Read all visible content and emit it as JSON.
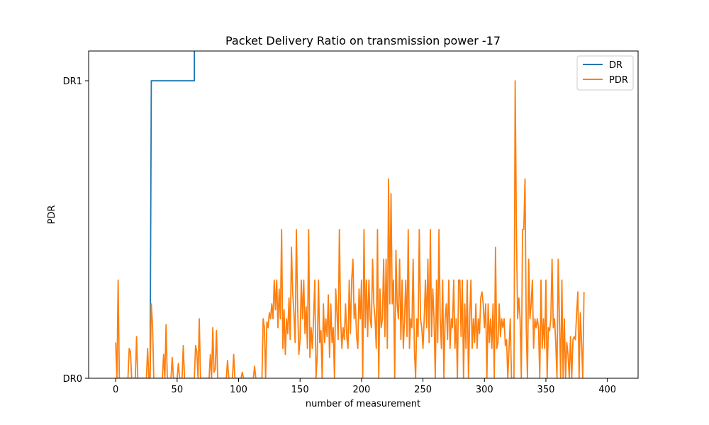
{
  "chart_data": {
    "type": "line",
    "title": "Packet Delivery Ratio on transmission power -17",
    "xlabel": "number of measurement",
    "ylabel": "PDR",
    "xlim": [
      -22,
      425
    ],
    "ylim": [
      0,
      1.1
    ],
    "x_ticks": [
      0,
      50,
      100,
      150,
      200,
      250,
      300,
      350,
      400
    ],
    "y_ticks": [
      {
        "value": 0,
        "label": "DR0"
      },
      {
        "value": 1,
        "label": "DR1"
      }
    ],
    "grid": false,
    "legend": {
      "position": "top-right",
      "entries": [
        "DR",
        "PDR"
      ]
    },
    "series": [
      {
        "name": "DR",
        "color": "#1f77b4",
        "points": [
          [
            0,
            0
          ],
          [
            28,
            0
          ],
          [
            29,
            1
          ],
          [
            64,
            1
          ],
          [
            64,
            1.2
          ]
        ]
      },
      {
        "name": "PDR",
        "color": "#ff7f0e",
        "points": [
          [
            0,
            0.12
          ],
          [
            1,
            0
          ],
          [
            2,
            0.33
          ],
          [
            3,
            0
          ],
          [
            10,
            0
          ],
          [
            11,
            0.1
          ],
          [
            12,
            0.09
          ],
          [
            13,
            0
          ],
          [
            16,
            0
          ],
          [
            17,
            0.14
          ],
          [
            18,
            0
          ],
          [
            25,
            0
          ],
          [
            26,
            0.1
          ],
          [
            27,
            0
          ],
          [
            28,
            0
          ],
          [
            29,
            0.25
          ],
          [
            30,
            0.18
          ],
          [
            31,
            0
          ],
          [
            38,
            0
          ],
          [
            39,
            0.08
          ],
          [
            40,
            0
          ],
          [
            41,
            0.18
          ],
          [
            42,
            0
          ],
          [
            45,
            0
          ],
          [
            46,
            0.07
          ],
          [
            47,
            0
          ],
          [
            50,
            0
          ],
          [
            51,
            0.05
          ],
          [
            52,
            0
          ],
          [
            54,
            0
          ],
          [
            55,
            0.11
          ],
          [
            56,
            0
          ],
          [
            64,
            0
          ],
          [
            65,
            0.11
          ],
          [
            66,
            0.09
          ],
          [
            67,
            0
          ],
          [
            68,
            0.2
          ],
          [
            69,
            0
          ],
          [
            76,
            0
          ],
          [
            77,
            0.08
          ],
          [
            78,
            0
          ],
          [
            79,
            0.17
          ],
          [
            80,
            0.02
          ],
          [
            81,
            0.03
          ],
          [
            82,
            0.16
          ],
          [
            83,
            0
          ],
          [
            90,
            0
          ],
          [
            91,
            0.06
          ],
          [
            92,
            0
          ],
          [
            95,
            0
          ],
          [
            96,
            0.08
          ],
          [
            97,
            0
          ],
          [
            102,
            0
          ],
          [
            103,
            0.02
          ],
          [
            104,
            0
          ],
          [
            112,
            0
          ],
          [
            113,
            0.04
          ],
          [
            114,
            0
          ],
          [
            119,
            0
          ],
          [
            120,
            0.2
          ],
          [
            121,
            0.17
          ],
          [
            122,
            0
          ],
          [
            123,
            0.19
          ],
          [
            124,
            0.17
          ],
          [
            125,
            0.22
          ],
          [
            126,
            0.2
          ],
          [
            127,
            0.25
          ],
          [
            128,
            0.2
          ],
          [
            129,
            0.33
          ],
          [
            130,
            0.23
          ],
          [
            131,
            0.33
          ],
          [
            132,
            0.17
          ],
          [
            133,
            0.3
          ],
          [
            134,
            0.2
          ],
          [
            135,
            0.5
          ],
          [
            136,
            0.1
          ],
          [
            137,
            0.23
          ],
          [
            138,
            0.08
          ],
          [
            139,
            0.2
          ],
          [
            140,
            0.15
          ],
          [
            141,
            0.27
          ],
          [
            142,
            0.13
          ],
          [
            143,
            0.44
          ],
          [
            144,
            0.29
          ],
          [
            145,
            0.22
          ],
          [
            146,
            0.12
          ],
          [
            147,
            0.5
          ],
          [
            148,
            0.25
          ],
          [
            149,
            0.08
          ],
          [
            150,
            0.13
          ],
          [
            151,
            0.33
          ],
          [
            152,
            0.2
          ],
          [
            153,
            0.33
          ],
          [
            154,
            0.15
          ],
          [
            155,
            0.24
          ],
          [
            156,
            0.1
          ],
          [
            157,
            0.5
          ],
          [
            158,
            0.07
          ],
          [
            159,
            0.17
          ],
          [
            160,
            0.1
          ],
          [
            161,
            0.2
          ],
          [
            162,
            0.33
          ],
          [
            163,
            0
          ],
          [
            164,
            0.08
          ],
          [
            165,
            0.33
          ],
          [
            166,
            0.12
          ],
          [
            167,
            0.16
          ],
          [
            168,
            0
          ],
          [
            169,
            0.25
          ],
          [
            170,
            0.12
          ],
          [
            171,
            0.2
          ],
          [
            172,
            0.14
          ],
          [
            173,
            0.28
          ],
          [
            174,
            0.07
          ],
          [
            175,
            0.25
          ],
          [
            176,
            0.12
          ],
          [
            177,
            0.17
          ],
          [
            178,
            0
          ],
          [
            179,
            0.3
          ],
          [
            180,
            0.22
          ],
          [
            181,
            0.13
          ],
          [
            182,
            0.5
          ],
          [
            183,
            0.2
          ],
          [
            184,
            0.1
          ],
          [
            185,
            0.17
          ],
          [
            186,
            0.13
          ],
          [
            187,
            0.25
          ],
          [
            188,
            0.14
          ],
          [
            189,
            0.1
          ],
          [
            190,
            0.33
          ],
          [
            191,
            0.15
          ],
          [
            192,
            0.33
          ],
          [
            193,
            0.4
          ],
          [
            194,
            0.2
          ],
          [
            195,
            0.25
          ],
          [
            196,
            0.14
          ],
          [
            197,
            0.1
          ],
          [
            198,
            0.3
          ],
          [
            199,
            0.2
          ],
          [
            200,
            0.33
          ],
          [
            201,
            0
          ],
          [
            202,
            0.5
          ],
          [
            203,
            0.17
          ],
          [
            204,
            0.33
          ],
          [
            205,
            0.14
          ],
          [
            206,
            0.33
          ],
          [
            207,
            0.2
          ],
          [
            208,
            0.17
          ],
          [
            209,
            0.4
          ],
          [
            210,
            0.25
          ],
          [
            211,
            0.2
          ],
          [
            212,
            0.1
          ],
          [
            213,
            0.5
          ],
          [
            214,
            0
          ],
          [
            215,
            0.3
          ],
          [
            216,
            0.17
          ],
          [
            217,
            0.2
          ],
          [
            218,
            0.4
          ],
          [
            219,
            0.14
          ],
          [
            220,
            0.4
          ],
          [
            221,
            0.1
          ],
          [
            222,
            0.67
          ],
          [
            223,
            0.25
          ],
          [
            224,
            0.62
          ],
          [
            225,
            0.25
          ],
          [
            226,
            0.33
          ],
          [
            227,
            0
          ],
          [
            228,
            0.43
          ],
          [
            229,
            0.25
          ],
          [
            230,
            0.2
          ],
          [
            231,
            0.4
          ],
          [
            232,
            0.13
          ],
          [
            233,
            0.33
          ],
          [
            234,
            0.1
          ],
          [
            235,
            0.2
          ],
          [
            236,
            0.33
          ],
          [
            237,
            0.14
          ],
          [
            238,
            0.5
          ],
          [
            239,
            0.1
          ],
          [
            240,
            0.2
          ],
          [
            241,
            0.17
          ],
          [
            242,
            0.4
          ],
          [
            243,
            0.1
          ],
          [
            244,
            0
          ],
          [
            245,
            0.2
          ],
          [
            246,
            0.14
          ],
          [
            247,
            0.5
          ],
          [
            248,
            0.2
          ],
          [
            249,
            0.17
          ],
          [
            250,
            0.1
          ],
          [
            251,
            0.2
          ],
          [
            252,
            0.33
          ],
          [
            253,
            0.17
          ],
          [
            254,
            0.4
          ],
          [
            255,
            0.12
          ],
          [
            256,
            0.5
          ],
          [
            257,
            0.14
          ],
          [
            258,
            0.3
          ],
          [
            259,
            0.2
          ],
          [
            260,
            0
          ],
          [
            261,
            0.33
          ],
          [
            262,
            0.12
          ],
          [
            263,
            0.5
          ],
          [
            264,
            0.2
          ],
          [
            265,
            0.1
          ],
          [
            266,
            0.33
          ],
          [
            267,
            0
          ],
          [
            268,
            0.2
          ],
          [
            269,
            0.25
          ],
          [
            270,
            0.13
          ],
          [
            271,
            0.33
          ],
          [
            272,
            0.1
          ],
          [
            273,
            0.2
          ],
          [
            274,
            0.17
          ],
          [
            275,
            0.33
          ],
          [
            276,
            0.1
          ],
          [
            277,
            0.2
          ],
          [
            278,
            0
          ],
          [
            279,
            0.33
          ],
          [
            280,
            0.33
          ],
          [
            281,
            0.14
          ],
          [
            282,
            0.33
          ],
          [
            283,
            0
          ],
          [
            284,
            0.25
          ],
          [
            285,
            0.1
          ],
          [
            286,
            0.33
          ],
          [
            287,
            0
          ],
          [
            288,
            0.2
          ],
          [
            289,
            0.33
          ],
          [
            290,
            0.1
          ],
          [
            291,
            0.2
          ],
          [
            292,
            0.12
          ],
          [
            293,
            0.25
          ],
          [
            294,
            0.1
          ],
          [
            295,
            0.2
          ],
          [
            296,
            0.15
          ],
          [
            297,
            0.27
          ],
          [
            298,
            0.29
          ],
          [
            299,
            0.25
          ],
          [
            300,
            0.17
          ],
          [
            301,
            0.25
          ],
          [
            302,
            0
          ],
          [
            303,
            0.25
          ],
          [
            304,
            0.12
          ],
          [
            305,
            0.2
          ],
          [
            306,
            0.1
          ],
          [
            307,
            0.25
          ],
          [
            308,
            0
          ],
          [
            309,
            0.44
          ],
          [
            310,
            0.1
          ],
          [
            311,
            0.12
          ],
          [
            312,
            0.25
          ],
          [
            313,
            0.14
          ],
          [
            314,
            0.2
          ],
          [
            315,
            0.17
          ],
          [
            316,
            0.2
          ],
          [
            317,
            0.11
          ],
          [
            318,
            0.13
          ],
          [
            319,
            0
          ],
          [
            320,
            0.1
          ],
          [
            321,
            0.2
          ],
          [
            322,
            0
          ],
          [
            324,
            0
          ],
          [
            325,
            1
          ],
          [
            326,
            0.5
          ],
          [
            327,
            0.2
          ],
          [
            328,
            0.27
          ],
          [
            329,
            0.2
          ],
          [
            330,
            0
          ],
          [
            331,
            0.5
          ],
          [
            332,
            0.5
          ],
          [
            333,
            0.67
          ],
          [
            334,
            0.17
          ],
          [
            335,
            0
          ],
          [
            336,
            0.4
          ],
          [
            337,
            0.2
          ],
          [
            338,
            0.25
          ],
          [
            339,
            0.33
          ],
          [
            340,
            0.1
          ],
          [
            341,
            0.2
          ],
          [
            342,
            0.17
          ],
          [
            343,
            0.2
          ],
          [
            344,
            0.17
          ],
          [
            345,
            0
          ],
          [
            346,
            0.33
          ],
          [
            347,
            0.1
          ],
          [
            348,
            0.2
          ],
          [
            349,
            0.1
          ],
          [
            350,
            0.33
          ],
          [
            351,
            0
          ],
          [
            352,
            0.17
          ],
          [
            353,
            0.16
          ],
          [
            354,
            0.2
          ],
          [
            355,
            0.4
          ],
          [
            356,
            0.17
          ],
          [
            357,
            0.2
          ],
          [
            358,
            0.12
          ],
          [
            359,
            0
          ],
          [
            360,
            0.4
          ],
          [
            361,
            0.2
          ],
          [
            362,
            0
          ],
          [
            363,
            0.33
          ],
          [
            364,
            0
          ],
          [
            365,
            0.2
          ],
          [
            366,
            0
          ],
          [
            367,
            0.12
          ],
          [
            368,
            0.08
          ],
          [
            369,
            0
          ],
          [
            370,
            0.14
          ],
          [
            371,
            0
          ],
          [
            372,
            0.13
          ],
          [
            373,
            0.14
          ],
          [
            374,
            0.13
          ],
          [
            375,
            0.22
          ],
          [
            376,
            0.29
          ],
          [
            377,
            0
          ],
          [
            378,
            0.22
          ],
          [
            379,
            0.12
          ],
          [
            380,
            0
          ],
          [
            381,
            0.29
          ]
        ]
      }
    ]
  }
}
